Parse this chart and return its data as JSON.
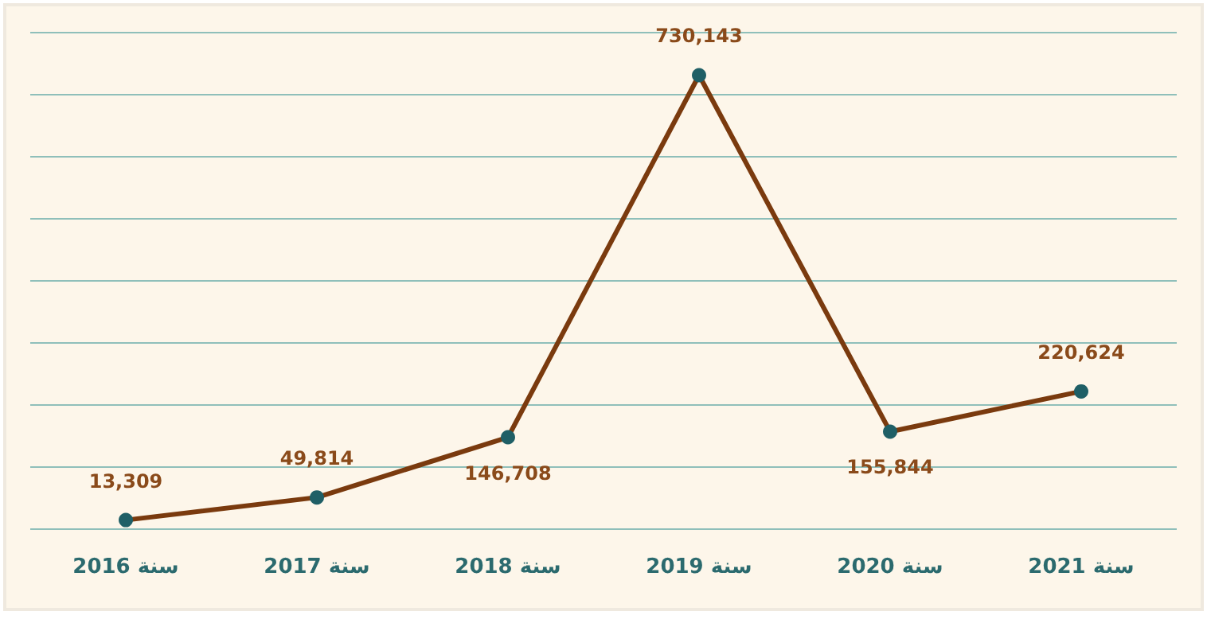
{
  "chart_data": {
    "type": "line",
    "categories": [
      "سنة 2016",
      "سنة 2017",
      "سنة 2018",
      "سنة 2019",
      "سنة 2020",
      "سنة 2021"
    ],
    "series": [
      {
        "color": "#7a3a0e",
        "colors": [
          "#1f5f66",
          "#1f5f66",
          "#1f5f66",
          "#1f5f66",
          "#1f5f66",
          "#1f5f66"
        ],
        "values": [
          13309,
          49814,
          146708,
          730143,
          155844,
          220624
        ],
        "value_labels": [
          "13,309",
          "49,814",
          "146,708",
          "730,143",
          "155,844",
          "220,624"
        ]
      }
    ],
    "yticks": [
      {
        "value": 0,
        "label": null
      },
      {
        "value": 100000,
        "label": null
      },
      {
        "value": 200000,
        "label": null
      },
      {
        "value": 300000,
        "label": null
      },
      {
        "value": 400000,
        "label": null
      },
      {
        "value": 500000,
        "label": null
      },
      {
        "value": 600000,
        "label": null
      },
      {
        "value": 700000,
        "label": null
      },
      {
        "value": 800000,
        "label": null
      }
    ],
    "ylim": [
      0,
      800000
    ],
    "grid": "y",
    "tick_labels": "x",
    "marker": "circle",
    "line_style": "solid"
  }
}
